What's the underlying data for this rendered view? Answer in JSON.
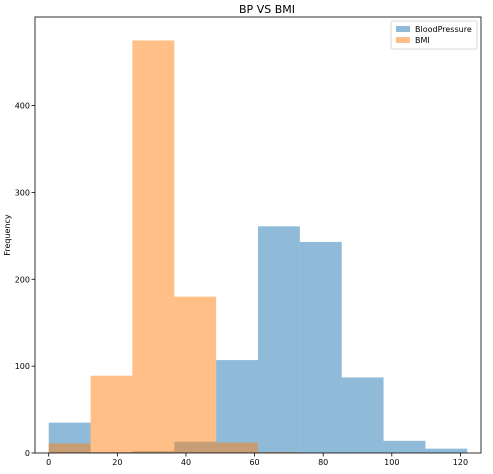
{
  "chart_data": {
    "type": "bar",
    "title": "BP VS BMI",
    "xlabel": "",
    "ylabel": "Frequency",
    "xlim": [
      -4,
      126
    ],
    "ylim": [
      0,
      502
    ],
    "xticks": [
      0,
      20,
      40,
      60,
      80,
      100,
      120
    ],
    "yticks": [
      0,
      100,
      200,
      300,
      400
    ],
    "grid": false,
    "legend_position": "top-right",
    "series": [
      {
        "name": "BloodPressure",
        "color": "#1f77b4",
        "opacity": 0.5,
        "bins": [
          {
            "x0": 0,
            "x1": 12.2,
            "count": 35
          },
          {
            "x0": 12.2,
            "x1": 24.4,
            "count": 1
          },
          {
            "x0": 24.4,
            "x1": 36.6,
            "count": 2
          },
          {
            "x0": 36.6,
            "x1": 48.8,
            "count": 13
          },
          {
            "x0": 48.8,
            "x1": 61.0,
            "count": 107
          },
          {
            "x0": 61.0,
            "x1": 73.2,
            "count": 261
          },
          {
            "x0": 73.2,
            "x1": 85.4,
            "count": 243
          },
          {
            "x0": 85.4,
            "x1": 97.6,
            "count": 87
          },
          {
            "x0": 97.6,
            "x1": 109.8,
            "count": 14
          },
          {
            "x0": 109.8,
            "x1": 122.0,
            "count": 5
          }
        ]
      },
      {
        "name": "BMI",
        "color": "#ff7f0e",
        "opacity": 0.5,
        "bins": [
          {
            "x0": 0,
            "x1": 12.2,
            "count": 11
          },
          {
            "x0": 12.2,
            "x1": 24.4,
            "count": 89
          },
          {
            "x0": 24.4,
            "x1": 36.6,
            "count": 475
          },
          {
            "x0": 36.6,
            "x1": 48.8,
            "count": 180
          },
          {
            "x0": 48.8,
            "x1": 61.0,
            "count": 12
          },
          {
            "x0": 61.0,
            "x1": 73.2,
            "count": 1
          }
        ]
      }
    ]
  }
}
